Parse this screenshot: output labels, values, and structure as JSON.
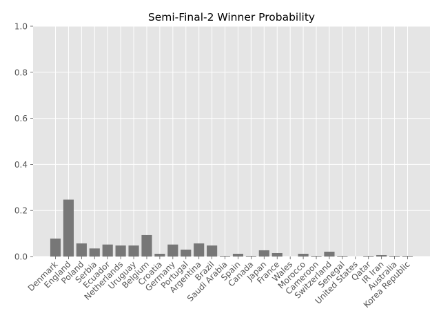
{
  "chart_data": {
    "type": "bar",
    "title": "Semi-Final-2 Winner Probability",
    "xlabel": "",
    "ylabel": "",
    "ylim": [
      0,
      1.0
    ],
    "yticks": [
      "0.0",
      "0.2",
      "0.4",
      "0.6",
      "0.8",
      "1.0"
    ],
    "grid": true,
    "bar_color": "#777777",
    "background_color": "#E5E5E5",
    "grid_color": "#FFFFFF",
    "categories": [
      "Denmark",
      "England",
      "Poland",
      "Serbia",
      "Ecuador",
      "Netherlands",
      "Uruguay",
      "Belgium",
      "Croatia",
      "Germany",
      "Portugal",
      "Argentina",
      "Brazil",
      "Saudi Arabia",
      "Spain",
      "Canada",
      "Japan",
      "France",
      "Wales",
      "Morocco",
      "Cameroon",
      "Switzerland",
      "Senegal",
      "United States",
      "Qatar",
      "IR Iran",
      "Australia",
      "Korea Republic"
    ],
    "values": [
      0.078,
      0.247,
      0.057,
      0.035,
      0.052,
      0.048,
      0.048,
      0.093,
      0.012,
      0.052,
      0.03,
      0.057,
      0.048,
      0.003,
      0.012,
      0.003,
      0.027,
      0.015,
      0.0,
      0.012,
      0.003,
      0.021,
      0.003,
      0.0,
      0.003,
      0.006,
      0.003,
      0.003
    ]
  }
}
